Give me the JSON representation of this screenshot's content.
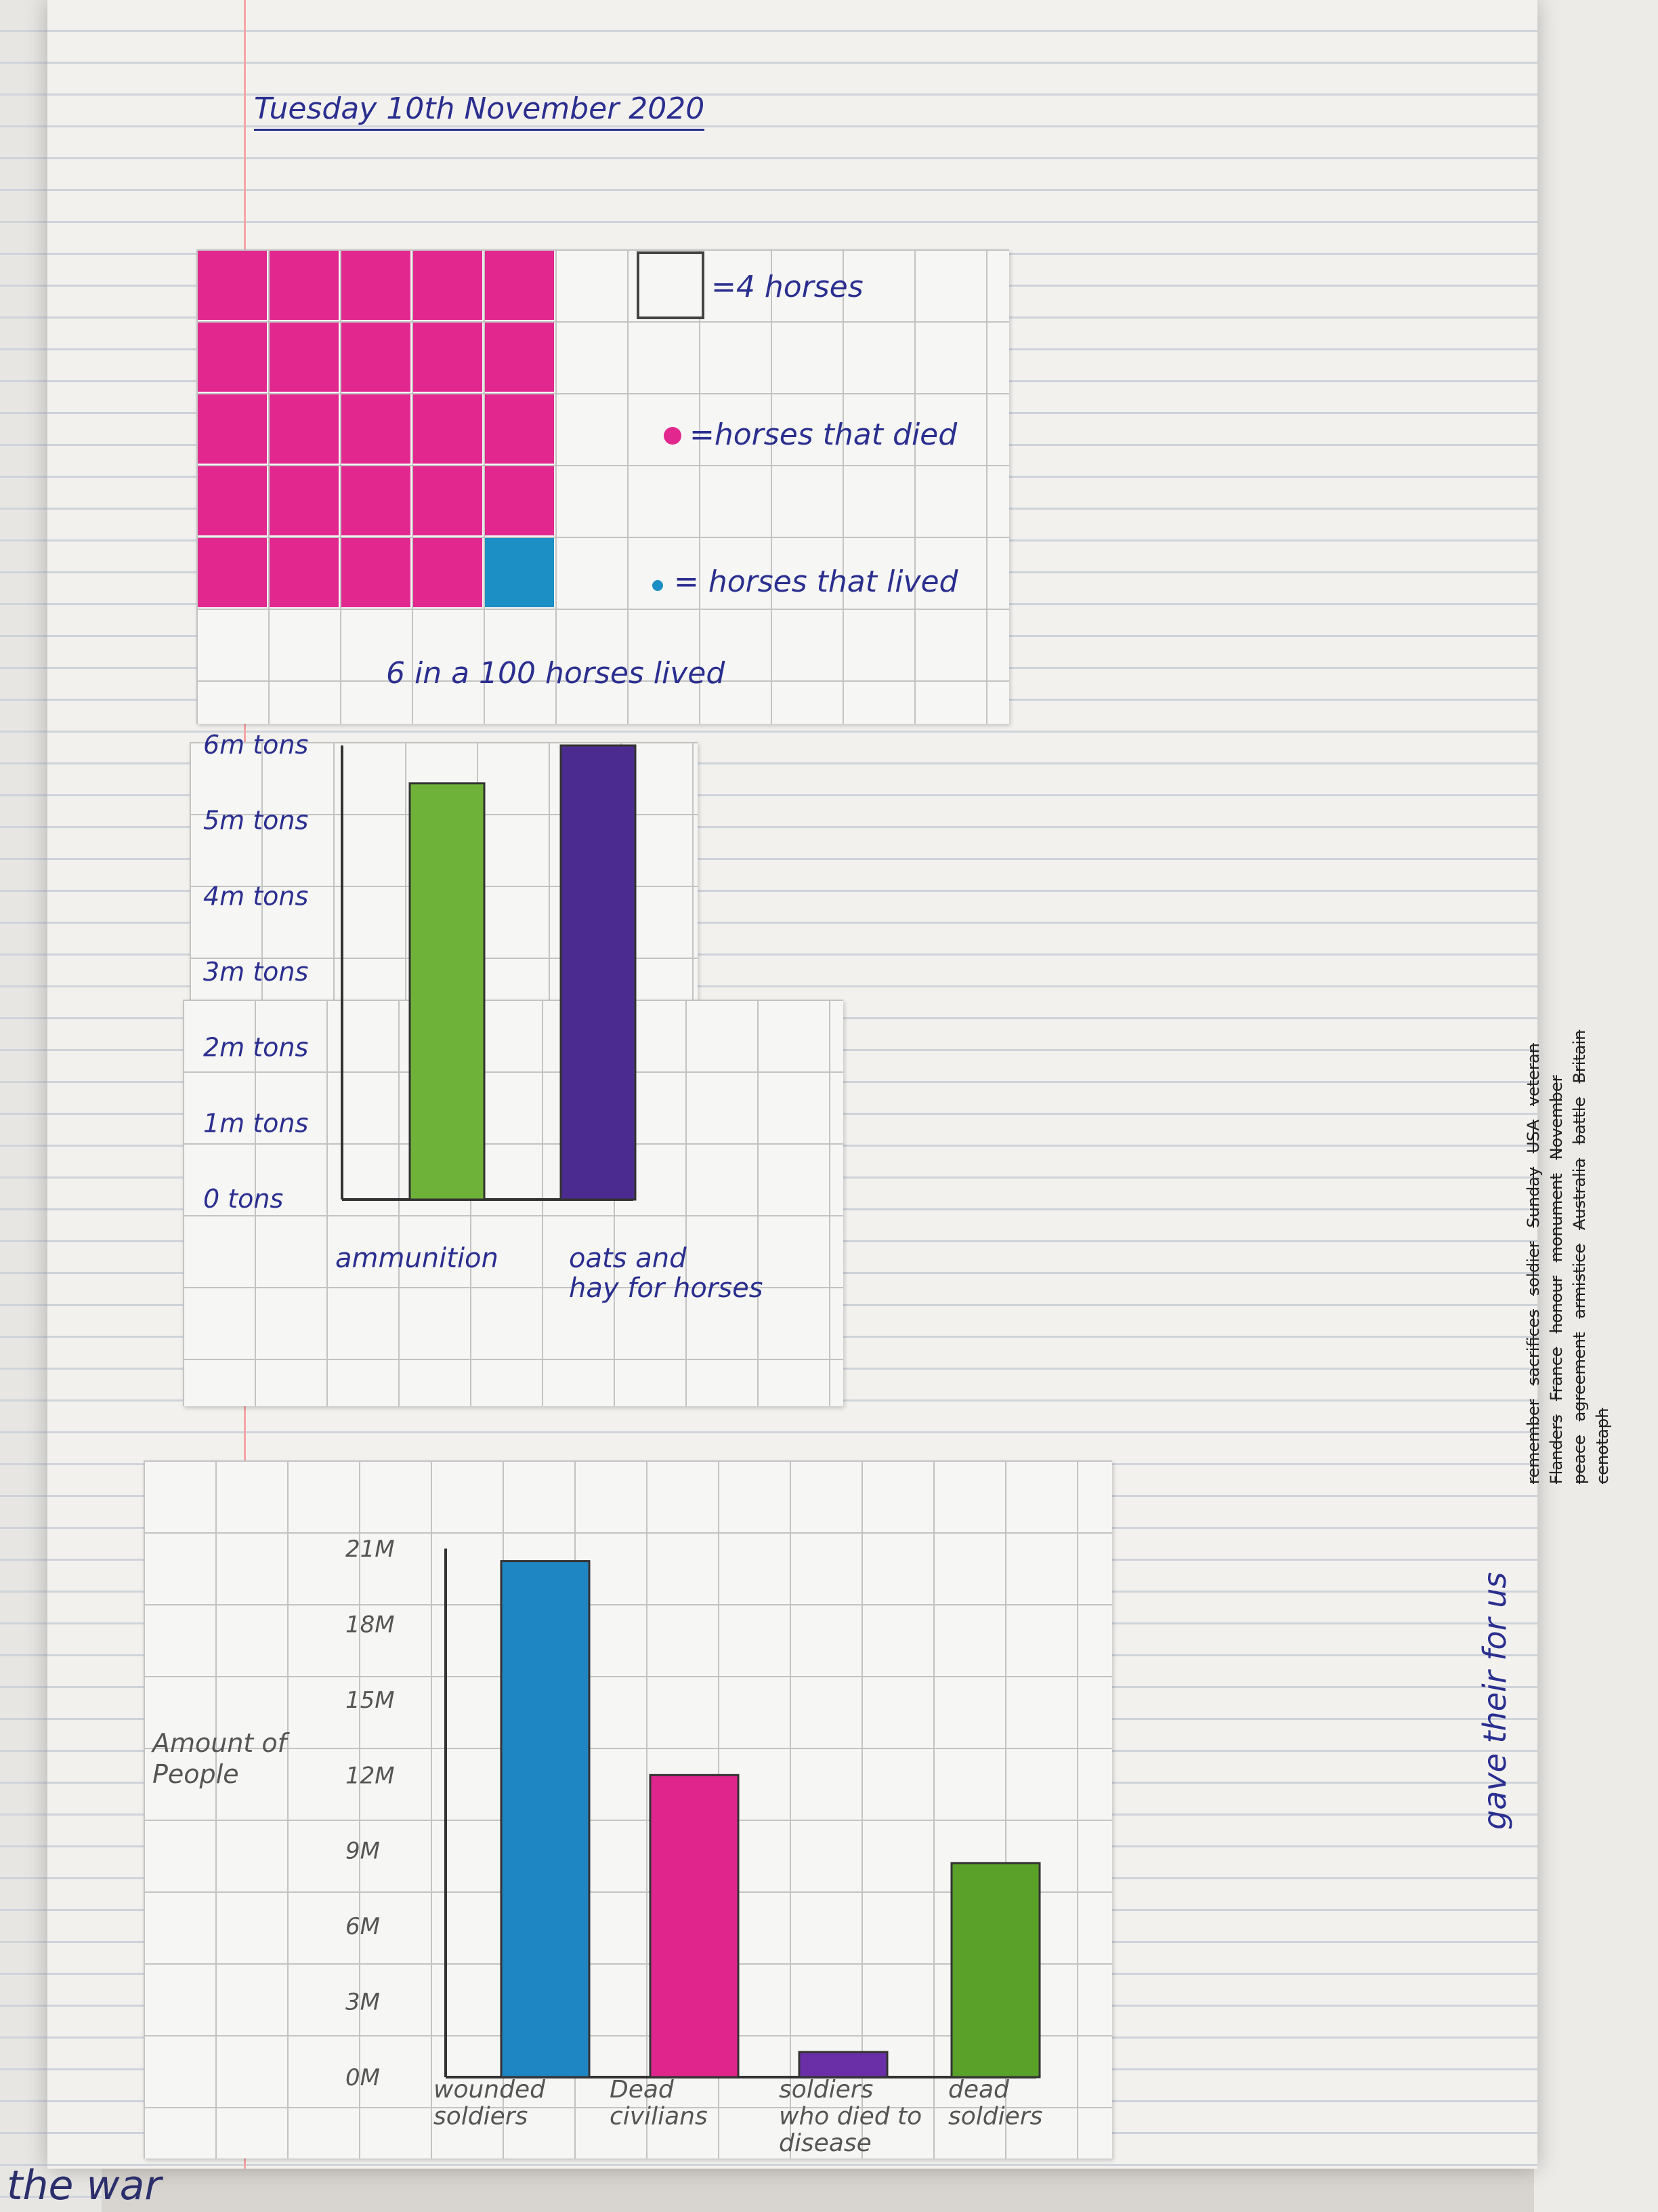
{
  "date": "Tuesday 10th November 2020",
  "pictogram": {
    "key_square": "=4 horses",
    "key_died": "=horses that died",
    "key_lived": "= horses that lived",
    "caption": "6 in a 100 horses lived",
    "colors": {
      "died": "#e2288f",
      "lived": "#1c8fc4"
    }
  },
  "chart_data": [
    {
      "type": "bar",
      "categories": [
        "ammunition",
        "oats and hay for horses"
      ],
      "values": [
        5.5,
        6
      ],
      "ytick_labels": [
        "0 tons",
        "1m tons",
        "2m tons",
        "3m tons",
        "4m tons",
        "5m tons",
        "6m tons"
      ],
      "ylim": [
        0,
        6
      ],
      "colors": [
        "#6fb23a",
        "#4b2b8f"
      ]
    },
    {
      "type": "bar",
      "categories": [
        "wounded soldiers",
        "Dead civilians",
        "soldiers who died to disease",
        "dead soldiers"
      ],
      "values": [
        20.5,
        12,
        1,
        8.5
      ],
      "ytick_labels": [
        "0M",
        "3M",
        "6M",
        "9M",
        "12M",
        "15M",
        "18M",
        "21M"
      ],
      "ylim": [
        0,
        21
      ],
      "ylabel": "Amount of People",
      "colors": [
        "#1e86c2",
        "#e0268d",
        "#6a2fa6",
        "#5aa12a"
      ]
    }
  ],
  "side_words": [
    "remember",
    "sacrifices",
    "soldier",
    "Sunday",
    "USA",
    "veteran",
    "Flanders",
    "France",
    "honour",
    "monument",
    "November",
    "peace",
    "agreement",
    "armistice",
    "Australia",
    "battle",
    "Britain",
    "cenotaph"
  ],
  "side_caption": "gave their for us",
  "bottom_text": "the war"
}
